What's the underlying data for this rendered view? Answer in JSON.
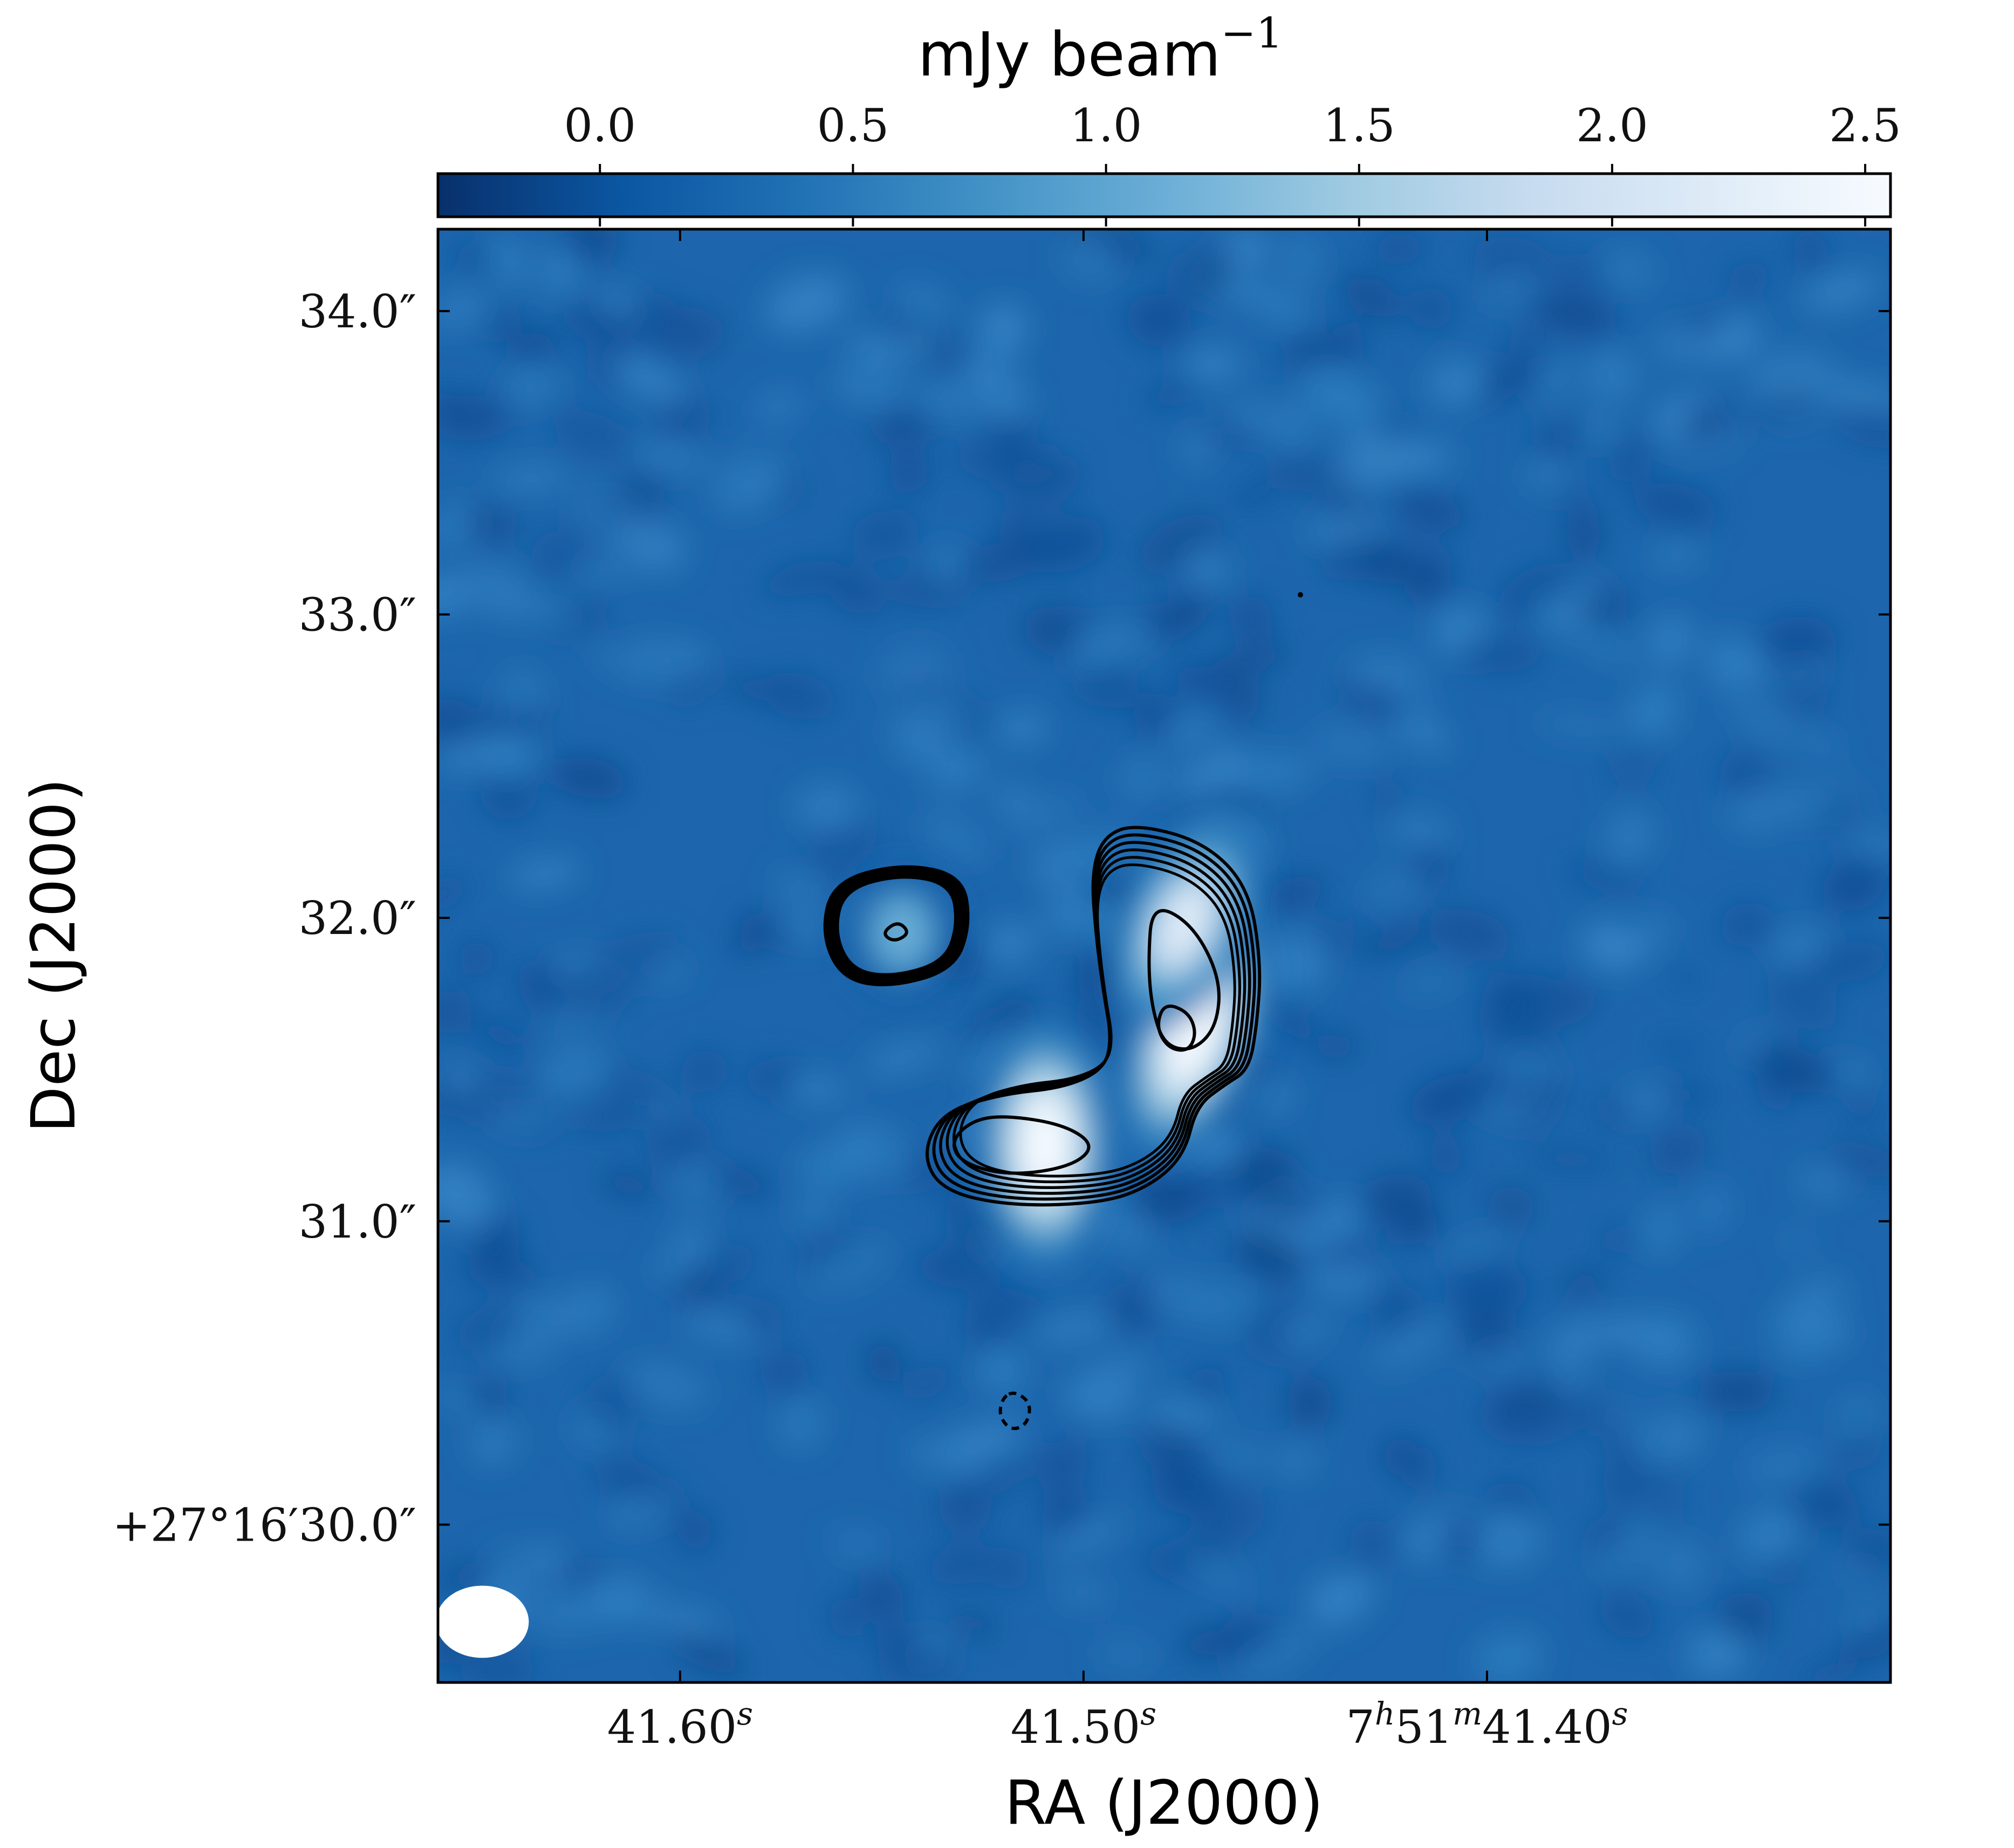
{
  "chart_data": {
    "type": "heatmap",
    "title": "",
    "xlabel": "RA (J2000)",
    "ylabel": "Dec (J2000)",
    "colorbar": {
      "label": "mJy beam",
      "label_exponent": "−1",
      "colormap": "Blues_r",
      "colors": [
        "#08306b",
        "#0b56a1",
        "#2171b5",
        "#4292c6",
        "#6baed6",
        "#9ecae1",
        "#c6dbef",
        "#deebf7",
        "#f7fbff"
      ],
      "range": [
        -0.32,
        2.55
      ],
      "ticks": [
        {
          "value": 0.0,
          "label": "0.0"
        },
        {
          "value": 0.5,
          "label": "0.5"
        },
        {
          "value": 1.0,
          "label": "1.0"
        },
        {
          "value": 1.5,
          "label": "1.5"
        },
        {
          "value": 2.0,
          "label": "2.0"
        },
        {
          "value": 2.5,
          "label": "2.5"
        }
      ]
    },
    "x_axis": {
      "unit": "RA seconds",
      "reversed": true,
      "range": [
        41.66,
        41.3
      ],
      "ticks": [
        {
          "value": 41.6,
          "label": "41.60",
          "sup": "s",
          "prefix": ""
        },
        {
          "value": 41.5,
          "label": "41.50",
          "sup": "s",
          "prefix": ""
        },
        {
          "value": 41.4,
          "label": "41.40",
          "sup": "s",
          "prefix": "7h51m"
        }
      ]
    },
    "y_axis": {
      "unit": "Dec arcsec offset from +27°16′",
      "range": [
        29.48,
        34.27
      ],
      "ticks": [
        {
          "value": 34.0,
          "label": "34.0″"
        },
        {
          "value": 33.0,
          "label": "33.0″"
        },
        {
          "value": 32.0,
          "label": "32.0″"
        },
        {
          "value": 31.0,
          "label": "31.0″"
        },
        {
          "value": 30.0,
          "label": "+27°16′30.0″"
        }
      ]
    },
    "grid": false,
    "legend": "none",
    "background_noise_level": 0.0,
    "sources": [
      {
        "name": "",
        "ra_s": 41.5095,
        "dec_arcsec": 31.25,
        "peak_mJy": 2.5,
        "major": 0.34,
        "minor": 0.18,
        "pa_deg": 0
      },
      {
        "name": "",
        "ra_s": 41.4725,
        "dec_arcsec": 31.62,
        "peak_mJy": 2.5,
        "major": 0.36,
        "minor": 0.17,
        "pa_deg": 20
      },
      {
        "name": "",
        "ra_s": 41.475,
        "dec_arcsec": 31.98,
        "peak_mJy": 2.1,
        "major": 0.3,
        "minor": 0.17,
        "pa_deg": 25
      },
      {
        "name": "",
        "ra_s": 41.545,
        "dec_arcsec": 31.95,
        "peak_mJy": 1.2,
        "major": 0.17,
        "minor": 0.14,
        "pa_deg": 0
      }
    ],
    "contours": [
      {
        "ring": 1,
        "path": [
          [
            41.487,
            32.31
          ],
          [
            41.47,
            32.25
          ],
          [
            41.459,
            32.1
          ],
          [
            41.456,
            31.85
          ],
          [
            41.457,
            31.65
          ],
          [
            41.459,
            31.5
          ],
          [
            41.465,
            31.45
          ],
          [
            41.472,
            31.38
          ],
          [
            41.475,
            31.22
          ],
          [
            41.483,
            31.12
          ],
          [
            41.495,
            31.06
          ],
          [
            41.518,
            31.05
          ],
          [
            41.535,
            31.1
          ],
          [
            41.54,
            31.22
          ],
          [
            41.535,
            31.36
          ],
          [
            41.52,
            31.42
          ],
          [
            41.505,
            31.44
          ],
          [
            41.495,
            31.5
          ],
          [
            41.493,
            31.6
          ],
          [
            41.495,
            31.75
          ],
          [
            41.497,
            31.95
          ],
          [
            41.498,
            32.15
          ],
          [
            41.495,
            32.27
          ]
        ]
      },
      {
        "ring": 1,
        "path": [
          [
            41.545,
            32.18
          ],
          [
            41.53,
            32.14
          ],
          [
            41.528,
            31.98
          ],
          [
            41.532,
            31.83
          ],
          [
            41.548,
            31.77
          ],
          [
            41.56,
            31.8
          ],
          [
            41.565,
            31.95
          ],
          [
            41.562,
            32.12
          ]
        ]
      },
      {
        "ring": 2,
        "path": [
          [
            41.483,
            32.05
          ],
          [
            41.473,
            31.98
          ],
          [
            41.466,
            31.8
          ],
          [
            41.467,
            31.64
          ],
          [
            41.473,
            31.56
          ],
          [
            41.48,
            31.58
          ],
          [
            41.483,
            31.7
          ],
          [
            41.484,
            31.85
          ]
        ]
      },
      {
        "ring": 3,
        "path": [
          [
            41.48,
            31.72
          ],
          [
            41.474,
            31.69
          ],
          [
            41.472,
            31.62
          ],
          [
            41.474,
            31.56
          ],
          [
            41.479,
            31.57
          ],
          [
            41.482,
            31.64
          ]
        ]
      },
      {
        "ring": 2,
        "path": [
          [
            41.52,
            31.35
          ],
          [
            41.505,
            31.32
          ],
          [
            41.497,
            31.25
          ],
          [
            41.503,
            31.18
          ],
          [
            41.518,
            31.15
          ],
          [
            41.53,
            31.19
          ],
          [
            41.533,
            31.26
          ],
          [
            41.528,
            31.33
          ]
        ]
      },
      {
        "ring": 3,
        "path": [
          [
            41.546,
            31.99
          ],
          [
            41.543,
            31.95
          ],
          [
            41.547,
            31.92
          ],
          [
            41.55,
            31.95
          ]
        ]
      },
      {
        "ring": 4,
        "path": [
          [
            41.517,
            30.44
          ],
          [
            41.513,
            30.4
          ],
          [
            41.514,
            30.33
          ],
          [
            41.518,
            30.31
          ],
          [
            41.521,
            30.36
          ],
          [
            41.52,
            30.42
          ]
        ]
      }
    ],
    "beam": {
      "ra_s": 41.649,
      "dec_arcsec": 29.68,
      "major": 0.17,
      "minor": 0.13,
      "pa_deg": 90
    }
  }
}
